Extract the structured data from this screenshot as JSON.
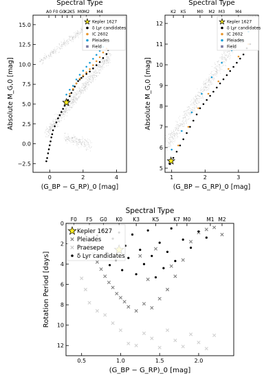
{
  "chart_data": [
    {
      "id": "panel-a",
      "type": "scatter",
      "title": "Spectral Type",
      "xlabel": "(G_BP − G_RP)_0 [mag]",
      "ylabel": "Absolute M_G,0 [mag]",
      "xlim": [
        -1.0,
        4.6
      ],
      "ylim": [
        16.2,
        -3.6
      ],
      "y_inverted": true,
      "x_ticks": [
        0,
        2,
        4
      ],
      "x_tick_labels": [
        "0",
        "2",
        "4"
      ],
      "y_ticks": [
        -2.5,
        0.0,
        2.5,
        5.0,
        7.5,
        10.0,
        12.5,
        15.0
      ],
      "y_tick_labels": [
        "−2.5",
        "0.0",
        "2.5",
        "5.0",
        "7.5",
        "10.0",
        "12.5",
        "15.0"
      ],
      "top_ticks": [
        {
          "label": "A0",
          "x": -0.05
        },
        {
          "label": "F0",
          "x": 0.35
        },
        {
          "label": "G0",
          "x": 0.75
        },
        {
          "label": "K2",
          "x": 1.05
        },
        {
          "label": "K5",
          "x": 1.35
        },
        {
          "label": "M0",
          "x": 1.85
        },
        {
          "label": "M2",
          "x": 2.2
        },
        {
          "label": "M4",
          "x": 3.0
        }
      ],
      "legend_position": "top-right",
      "legend": [
        "Kepler 1627",
        "δ Lyr candidates",
        "IC 2602",
        "Pleiades",
        "Field"
      ],
      "kepler1627": {
        "x": 1.0,
        "y": 5.2
      },
      "series": [
        {
          "name": "δ Lyr candidates",
          "color": "#000000",
          "points": [
            [
              -0.2,
              -2.2
            ],
            [
              -0.15,
              -1.8
            ],
            [
              -0.1,
              -1.2
            ],
            [
              -0.05,
              -0.7
            ],
            [
              0.0,
              -0.2
            ],
            [
              0.05,
              0.3
            ],
            [
              0.1,
              0.8
            ],
            [
              0.15,
              1.2
            ],
            [
              0.2,
              1.7
            ],
            [
              0.3,
              2.2
            ],
            [
              0.4,
              2.7
            ],
            [
              0.5,
              3.2
            ],
            [
              0.6,
              3.6
            ],
            [
              0.7,
              4.0
            ],
            [
              0.8,
              4.4
            ],
            [
              0.9,
              4.8
            ],
            [
              1.1,
              5.5
            ],
            [
              1.2,
              6.0
            ],
            [
              1.3,
              6.4
            ],
            [
              1.4,
              6.8
            ],
            [
              1.5,
              7.2
            ],
            [
              1.6,
              7.6
            ],
            [
              1.7,
              7.9
            ],
            [
              1.8,
              8.1
            ],
            [
              1.9,
              8.3
            ],
            [
              2.0,
              8.5
            ],
            [
              2.2,
              8.8
            ],
            [
              2.4,
              9.1
            ],
            [
              2.6,
              9.5
            ],
            [
              2.8,
              9.9
            ],
            [
              3.0,
              10.3
            ],
            [
              3.2,
              10.8
            ],
            [
              3.4,
              11.3
            ],
            [
              3.5,
              11.8
            ]
          ]
        },
        {
          "name": "IC 2602",
          "color": "#e8962e",
          "points": [
            [
              1.2,
              6.3
            ],
            [
              1.4,
              6.9
            ],
            [
              1.6,
              7.6
            ],
            [
              1.8,
              8.2
            ],
            [
              2.0,
              8.6
            ],
            [
              2.2,
              9.0
            ],
            [
              2.4,
              9.4
            ],
            [
              2.6,
              9.9
            ],
            [
              2.8,
              10.4
            ],
            [
              3.0,
              10.9
            ],
            [
              3.2,
              11.5
            ],
            [
              3.4,
              12.0
            ]
          ]
        },
        {
          "name": "Pleiades",
          "color": "#1a9ed8",
          "points": [
            [
              1.0,
              6.2
            ],
            [
              1.2,
              6.8
            ],
            [
              1.4,
              7.3
            ],
            [
              1.6,
              8.1
            ],
            [
              1.8,
              8.7
            ],
            [
              2.0,
              9.2
            ],
            [
              2.2,
              9.7
            ],
            [
              2.4,
              10.2
            ],
            [
              2.6,
              10.7
            ],
            [
              2.8,
              11.2
            ],
            [
              3.0,
              11.7
            ],
            [
              3.2,
              12.2
            ]
          ]
        }
      ]
    },
    {
      "id": "panel-b",
      "type": "scatter",
      "title": "Spectral Type",
      "xlabel": "(G_BP − G_RP)_0 [mag]",
      "ylabel": "Absolute M_G,0 [mag]",
      "xlim": [
        0.8,
        3.6
      ],
      "ylim": [
        12.4,
        4.8
      ],
      "y_inverted": true,
      "x_ticks": [
        1,
        2,
        3
      ],
      "x_tick_labels": [
        "1",
        "2",
        "3"
      ],
      "y_ticks": [
        5,
        6,
        7,
        8,
        9,
        10,
        11,
        12
      ],
      "y_tick_labels": [
        "5",
        "6",
        "7",
        "8",
        "9",
        "10",
        "11",
        "12"
      ],
      "top_ticks": [
        {
          "label": "K2",
          "x": 1.05
        },
        {
          "label": "K5",
          "x": 1.35
        },
        {
          "label": "M0",
          "x": 1.85
        },
        {
          "label": "M2",
          "x": 2.2
        },
        {
          "label": "M3",
          "x": 2.5
        },
        {
          "label": "M4",
          "x": 3.0
        }
      ],
      "legend_position": "top-right",
      "legend": [
        "Kepler 1627",
        "δ Lyr candidates",
        "IC 2602",
        "Pleiades",
        "Field"
      ],
      "kepler1627": {
        "x": 0.98,
        "y": 5.35
      },
      "series": [
        {
          "name": "δ Lyr candidates",
          "color": "#000000",
          "points": [
            [
              0.95,
              5.2
            ],
            [
              1.05,
              5.5
            ],
            [
              1.15,
              5.8
            ],
            [
              1.25,
              6.1
            ],
            [
              1.35,
              6.4
            ],
            [
              1.45,
              6.7
            ],
            [
              1.55,
              7.0
            ],
            [
              1.65,
              7.3
            ],
            [
              1.75,
              7.6
            ],
            [
              1.85,
              7.9
            ],
            [
              1.95,
              8.1
            ],
            [
              2.05,
              8.3
            ],
            [
              2.15,
              8.5
            ],
            [
              2.25,
              8.7
            ],
            [
              2.35,
              8.9
            ],
            [
              2.45,
              9.1
            ],
            [
              2.55,
              9.3
            ],
            [
              2.65,
              9.5
            ],
            [
              2.75,
              9.7
            ],
            [
              2.85,
              9.9
            ],
            [
              2.95,
              10.1
            ],
            [
              3.05,
              10.3
            ],
            [
              3.15,
              10.5
            ],
            [
              3.25,
              10.8
            ],
            [
              3.35,
              11.0
            ]
          ]
        },
        {
          "name": "IC 2602",
          "color": "#e8962e",
          "points": [
            [
              1.2,
              6.1
            ],
            [
              1.5,
              7.0
            ],
            [
              1.8,
              7.9
            ],
            [
              2.1,
              8.6
            ],
            [
              2.4,
              9.2
            ],
            [
              2.7,
              9.8
            ],
            [
              3.0,
              10.4
            ],
            [
              3.3,
              11.0
            ]
          ]
        },
        {
          "name": "Pleiades",
          "color": "#1a9ed8",
          "points": [
            [
              1.0,
              5.9
            ],
            [
              1.3,
              6.8
            ],
            [
              1.6,
              7.7
            ],
            [
              1.9,
              8.6
            ],
            [
              2.2,
              9.4
            ],
            [
              2.5,
              10.1
            ],
            [
              2.8,
              10.7
            ],
            [
              3.1,
              11.2
            ],
            [
              3.3,
              11.6
            ]
          ]
        }
      ]
    },
    {
      "id": "panel-c",
      "type": "scatter",
      "title": "Spectral Type",
      "xlabel": "(G_BP − G_RP)_0 [mag]",
      "ylabel": "Rotation Period [days]",
      "xlim": [
        0.3,
        2.45
      ],
      "ylim": [
        0,
        13
      ],
      "x_ticks": [
        0.5,
        1.0,
        1.5,
        2.0
      ],
      "x_tick_labels": [
        "0.5",
        "1.0",
        "1.5",
        "2.0"
      ],
      "y_ticks": [
        0,
        2,
        4,
        6,
        8,
        10,
        12
      ],
      "y_tick_labels": [
        "0",
        "2",
        "4",
        "6",
        "8",
        "10",
        "12"
      ],
      "top_ticks": [
        {
          "label": "F0",
          "x": 0.4
        },
        {
          "label": "F5",
          "x": 0.6
        },
        {
          "label": "G0",
          "x": 0.78
        },
        {
          "label": "K0",
          "x": 0.98
        },
        {
          "label": "K3",
          "x": 1.2
        },
        {
          "label": "K5",
          "x": 1.45
        },
        {
          "label": "K7",
          "x": 1.72
        },
        {
          "label": "M0",
          "x": 1.85
        },
        {
          "label": "M1",
          "x": 2.15
        },
        {
          "label": "M2",
          "x": 2.3
        }
      ],
      "legend_position": "top-left",
      "legend": [
        "Kepler 1627",
        "Pleiades",
        "Praesepe",
        "δ Lyr candidates"
      ],
      "kepler1627": {
        "x": 0.98,
        "y": 2.6
      },
      "series": [
        {
          "name": "Praesepe",
          "color": "#d0d0d0",
          "points": [
            [
              1.1,
              11.8
            ],
            [
              1.2,
              12.0
            ],
            [
              1.3,
              10.8
            ],
            [
              1.4,
              11.3
            ],
            [
              1.5,
              12.2
            ],
            [
              1.6,
              10.5
            ],
            [
              1.7,
              11.5
            ],
            [
              1.8,
              12.1
            ],
            [
              1.9,
              10.9
            ],
            [
              2.0,
              11.7
            ],
            [
              2.1,
              12.3
            ],
            [
              2.2,
              11.0
            ],
            [
              0.9,
              9.8
            ],
            [
              1.0,
              10.5
            ],
            [
              0.8,
              9.0
            ],
            [
              0.7,
              8.6
            ],
            [
              0.6,
              7.8
            ],
            [
              0.55,
              6.5
            ],
            [
              0.5,
              5.4
            ]
          ]
        },
        {
          "name": "Pleiades",
          "color": "#808080",
          "points": [
            [
              0.55,
              1.2
            ],
            [
              0.6,
              2.1
            ],
            [
              0.65,
              3.0
            ],
            [
              0.7,
              3.8
            ],
            [
              0.75,
              4.5
            ],
            [
              0.8,
              5.2
            ],
            [
              0.85,
              5.8
            ],
            [
              0.9,
              6.3
            ],
            [
              0.95,
              6.9
            ],
            [
              1.0,
              7.3
            ],
            [
              1.05,
              7.7
            ],
            [
              1.1,
              8.2
            ],
            [
              1.2,
              8.6
            ],
            [
              1.3,
              7.9
            ],
            [
              1.4,
              8.3
            ],
            [
              1.5,
              7.4
            ],
            [
              1.6,
              6.5
            ],
            [
              1.7,
              5.2
            ],
            [
              1.8,
              3.6
            ],
            [
              1.9,
              1.8
            ],
            [
              2.0,
              0.9
            ],
            [
              2.1,
              0.6
            ],
            [
              2.2,
              0.4
            ],
            [
              2.3,
              1.1
            ],
            [
              1.25,
              3.2
            ],
            [
              1.45,
              2.5
            ],
            [
              1.65,
              4.2
            ],
            [
              1.35,
              5.5
            ]
          ]
        },
        {
          "name": "δ Lyr candidates",
          "color": "#000000",
          "points": [
            [
              0.58,
              0.8
            ],
            [
              0.62,
              1.6
            ],
            [
              0.66,
              2.4
            ],
            [
              0.7,
              1.2
            ],
            [
              0.74,
              3.1
            ],
            [
              0.78,
              0.6
            ],
            [
              0.82,
              2.9
            ],
            [
              0.86,
              4.1
            ],
            [
              0.9,
              1.5
            ],
            [
              0.94,
              3.6
            ],
            [
              0.98,
              0.9
            ],
            [
              1.02,
              4.6
            ],
            [
              1.06,
              2.2
            ],
            [
              1.1,
              3.4
            ],
            [
              1.15,
              1.1
            ],
            [
              1.2,
              5.0
            ],
            [
              1.25,
              2.6
            ],
            [
              1.3,
              4.0
            ],
            [
              1.35,
              0.7
            ],
            [
              1.4,
              3.2
            ],
            [
              1.45,
              5.3
            ],
            [
              1.5,
              1.9
            ],
            [
              1.55,
              4.4
            ],
            [
              1.6,
              2.8
            ],
            [
              1.65,
              0.5
            ],
            [
              1.7,
              3.7
            ],
            [
              1.8,
              1.6
            ],
            [
              1.9,
              2.4
            ],
            [
              2.0,
              0.8
            ],
            [
              2.1,
              1.4
            ]
          ]
        }
      ]
    }
  ]
}
